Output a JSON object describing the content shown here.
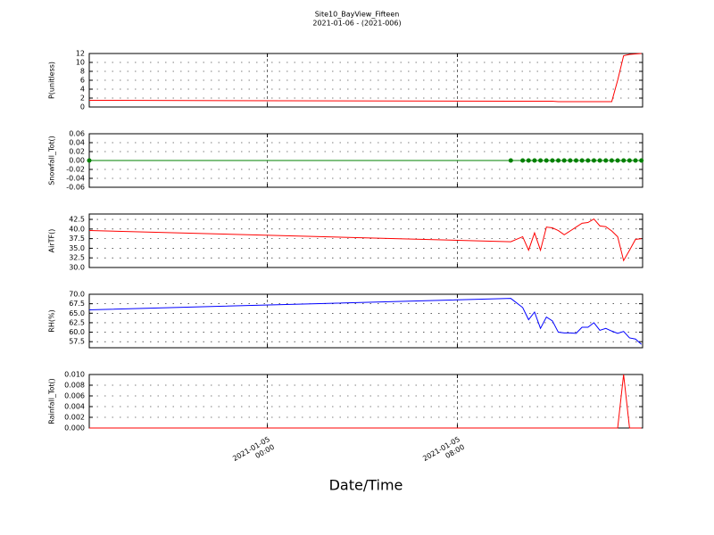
{
  "title": "Site10_BayView_Fifteen",
  "subtitle": "2021-01-06 - (2021-006)",
  "chart_data": [
    {
      "type": "line",
      "ylabel": "P(unitless)",
      "color": "#ff0000",
      "grid": true,
      "x": [
        -7.5,
        10.25,
        10.75,
        11.0,
        11.25,
        11.5,
        11.75,
        12.0,
        12.25,
        12.5,
        12.75,
        13.0,
        13.25,
        13.5,
        13.75,
        14.0,
        14.25,
        14.5,
        14.75,
        15.0,
        15.25,
        15.5,
        15.75
      ],
      "values": [
        1.5,
        1.3,
        1.3,
        1.3,
        1.3,
        1.3,
        1.3,
        1.3,
        1.2,
        1.2,
        1.2,
        1.2,
        1.2,
        1.2,
        1.2,
        1.2,
        1.2,
        1.2,
        6.0,
        11.5,
        11.8,
        11.9,
        12.0
      ],
      "xlim": [
        -7.5,
        15.8
      ],
      "ylim": [
        0,
        12
      ],
      "yticks": [
        0,
        2,
        4,
        6,
        8,
        10,
        12
      ]
    },
    {
      "type": "line",
      "ylabel": "Snowfall_Tot()",
      "color": "#008000",
      "marker": true,
      "grid": true,
      "x": [
        -7.5,
        10.25,
        10.75,
        11.0,
        11.25,
        11.5,
        11.75,
        12.0,
        12.25,
        12.5,
        12.75,
        13.0,
        13.25,
        13.5,
        13.75,
        14.0,
        14.25,
        14.5,
        14.75,
        15.0,
        15.25,
        15.5,
        15.75
      ],
      "values": [
        0,
        0,
        0,
        0,
        0,
        0,
        0,
        0,
        0,
        0,
        0,
        0,
        0,
        0,
        0,
        0,
        0,
        0,
        0,
        0,
        0,
        0,
        0
      ],
      "xlim": [
        -7.5,
        15.8
      ],
      "ylim": [
        -0.06,
        0.06
      ],
      "yticks": [
        -0.06,
        -0.04,
        -0.02,
        {
          "value": 0,
          "label": "0.00"
        },
        0.02,
        0.04,
        0.06
      ]
    },
    {
      "type": "line",
      "ylabel": "AirTF()",
      "color": "#ff0000",
      "grid": true,
      "x": [
        -7.5,
        10.25,
        10.75,
        11.0,
        11.25,
        11.5,
        11.75,
        12.0,
        12.25,
        12.5,
        12.75,
        13.0,
        13.25,
        13.5,
        13.75,
        14.0,
        14.25,
        14.5,
        14.75,
        15.0,
        15.25,
        15.5,
        15.75
      ],
      "values": [
        39.6,
        36.7,
        38.0,
        34.5,
        39.0,
        34.5,
        40.5,
        40.3,
        39.6,
        38.5,
        39.5,
        40.5,
        41.5,
        41.7,
        42.6,
        40.8,
        40.6,
        39.5,
        38.0,
        31.8,
        34.5,
        37.3,
        37.5
      ],
      "xlim": [
        -7.5,
        15.8
      ],
      "ylim": [
        30,
        43.9
      ],
      "yticks": [
        {
          "value": 30,
          "label": "30.0"
        },
        32.5,
        {
          "value": 35,
          "label": "35.0"
        },
        37.5,
        {
          "value": 40,
          "label": "40.0"
        },
        42.5
      ]
    },
    {
      "type": "line",
      "ylabel": "RH(%)",
      "color": "#0000ff",
      "grid": true,
      "x": [
        -7.5,
        10.25,
        10.75,
        11.0,
        11.25,
        11.5,
        11.75,
        12.0,
        12.25,
        12.5,
        12.75,
        13.0,
        13.25,
        13.5,
        13.75,
        14.0,
        14.25,
        14.5,
        14.75,
        15.0,
        15.25,
        15.5,
        15.75
      ],
      "values": [
        65.9,
        68.9,
        66.5,
        63.3,
        65.3,
        61.0,
        64.0,
        63.0,
        60.0,
        59.8,
        59.8,
        59.7,
        61.3,
        61.3,
        62.5,
        60.5,
        61.0,
        60.3,
        59.7,
        60.2,
        58.5,
        58.2,
        56.8
      ],
      "xlim": [
        -7.5,
        15.8
      ],
      "ylim": [
        55.9,
        70.0
      ],
      "yticks": [
        57.5,
        {
          "value": 60,
          "label": "60.0"
        },
        62.5,
        {
          "value": 65,
          "label": "65.0"
        },
        67.5,
        {
          "value": 70,
          "label": "70.0"
        }
      ]
    },
    {
      "type": "line",
      "ylabel": "Rainfall_Tot()",
      "xlabel": "Date/Time",
      "color": "#ff0000",
      "grid": true,
      "x": [
        -7.5,
        10.25,
        10.75,
        11.0,
        11.25,
        11.5,
        11.75,
        12.0,
        12.25,
        12.5,
        12.75,
        13.0,
        13.25,
        13.5,
        13.75,
        14.0,
        14.25,
        14.5,
        14.75,
        15.0,
        15.25,
        15.5,
        15.75
      ],
      "values": [
        0,
        0,
        0,
        0,
        0,
        0,
        0,
        0,
        0,
        0,
        0,
        0,
        0,
        0,
        0,
        0,
        0,
        0,
        0,
        0.01,
        0,
        0,
        0
      ],
      "xlim": [
        -7.5,
        15.8
      ],
      "ylim": [
        0,
        0.01
      ],
      "yticks": [
        {
          "value": 0,
          "label": "0.000"
        },
        0.002,
        0.004,
        0.006,
        0.008,
        {
          "value": 0.01,
          "label": "0.010"
        }
      ],
      "xticks": [
        {
          "value": 0,
          "label": "2021-01-05\n00:00"
        },
        {
          "value": 8,
          "label": "2021-01-05\n08:00"
        }
      ]
    }
  ]
}
